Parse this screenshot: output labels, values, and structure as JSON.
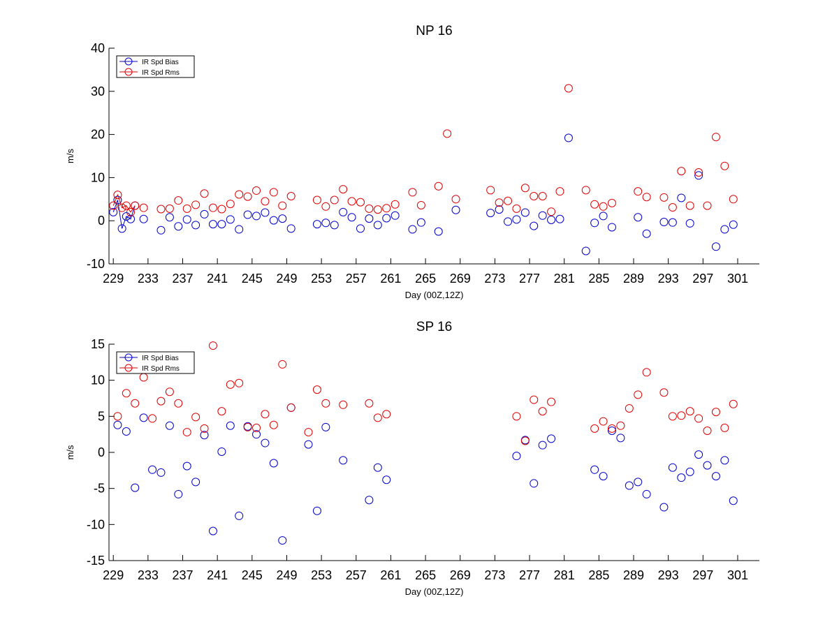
{
  "colors": {
    "bias": "#0000cc",
    "rms": "#e00000",
    "axis": "#000000",
    "background": "#ffffff"
  },
  "chart_data": [
    {
      "type": "scatter",
      "title": "NP 16",
      "xlabel": "Day (00Z,12Z)",
      "ylabel": "m/s",
      "xlim": [
        228.5,
        303.5
      ],
      "ylim": [
        -10,
        40
      ],
      "xticks": [
        229,
        233,
        237,
        241,
        245,
        249,
        253,
        257,
        261,
        265,
        269,
        273,
        277,
        281,
        285,
        289,
        293,
        297,
        301
      ],
      "yticks": [
        -10,
        0,
        10,
        20,
        30,
        40
      ],
      "grid": false,
      "legend_position": "top-left",
      "series": [
        {
          "name": "IR Spd Bias",
          "color_key": "bias",
          "marker": "circle",
          "connected_range": [
            229,
            231.5
          ],
          "x": [
            229,
            229.5,
            230,
            230.5,
            231,
            231.5,
            232.5,
            234.5,
            235.5,
            236.5,
            237.5,
            238.5,
            239.5,
            240.5,
            241.5,
            242.5,
            243.5,
            244.5,
            245.5,
            246.5,
            247.5,
            248.5,
            249.5,
            252.5,
            253.5,
            254.5,
            255.5,
            256.5,
            257.5,
            258.5,
            259.5,
            260.5,
            261.5,
            263.5,
            264.5,
            266.5,
            268.5,
            272.5,
            273.5,
            274.5,
            275.5,
            276.5,
            277.5,
            278.5,
            279.5,
            280.5,
            281.5,
            283.5,
            284.5,
            285.5,
            286.5,
            289.5,
            290.5,
            292.5,
            293.5,
            294.5,
            295.5,
            296.5,
            298.5,
            299.5,
            300.5
          ],
          "y": [
            2.0,
            4.8,
            -1.8,
            1.0,
            0.4,
            3.5,
            0.4,
            -2.2,
            0.8,
            -1.3,
            0.3,
            -1.0,
            1.5,
            -0.8,
            -0.8,
            0.3,
            -2.0,
            1.4,
            1.1,
            1.9,
            0.1,
            0.5,
            -1.8,
            -0.8,
            -0.5,
            -1.0,
            2.0,
            0.8,
            -1.8,
            0.5,
            -1.0,
            0.6,
            1.2,
            -2.0,
            -0.4,
            -2.5,
            2.5,
            1.8,
            2.6,
            -0.2,
            0.3,
            1.9,
            -1.2,
            1.2,
            0.2,
            0.4,
            19.2,
            -7.0,
            -0.5,
            1.1,
            -1.5,
            0.8,
            -3.0,
            -0.3,
            -0.4,
            5.3,
            -0.6,
            10.5,
            -6.0,
            -2.0,
            -0.9
          ]
        },
        {
          "name": "IR Spd Rms",
          "color_key": "rms",
          "marker": "circle",
          "connected_range": [
            229,
            231.5
          ],
          "x": [
            229,
            229.5,
            230,
            230.5,
            231,
            231.5,
            232.5,
            234.5,
            235.5,
            236.5,
            237.5,
            238.5,
            239.5,
            240.5,
            241.5,
            242.5,
            243.5,
            244.5,
            245.5,
            246.5,
            247.5,
            248.5,
            249.5,
            252.5,
            253.5,
            254.5,
            255.5,
            256.5,
            257.5,
            258.5,
            259.5,
            260.5,
            261.5,
            263.5,
            264.5,
            266.5,
            267.5,
            268.5,
            272.5,
            273.5,
            274.5,
            275.5,
            276.5,
            277.5,
            278.5,
            279.5,
            280.5,
            281.5,
            283.5,
            284.5,
            285.5,
            286.5,
            289.5,
            290.5,
            292.5,
            293.5,
            294.5,
            295.5,
            296.5,
            297.5,
            298.5,
            299.5,
            300.5
          ],
          "y": [
            3.5,
            6.0,
            3.0,
            3.5,
            2.0,
            3.5,
            3.0,
            2.7,
            2.8,
            4.7,
            2.8,
            3.7,
            6.3,
            3.0,
            2.7,
            3.9,
            6.1,
            5.6,
            7.0,
            4.5,
            6.6,
            3.5,
            5.7,
            4.8,
            3.3,
            4.8,
            7.3,
            4.5,
            4.3,
            2.8,
            2.6,
            2.9,
            3.8,
            6.6,
            3.6,
            8.0,
            20.2,
            5.0,
            7.1,
            4.2,
            4.6,
            2.8,
            7.6,
            5.7,
            5.7,
            2.1,
            6.8,
            30.7,
            7.1,
            3.8,
            3.3,
            4.1,
            6.8,
            5.5,
            5.4,
            3.1,
            11.5,
            3.5,
            11.2,
            3.5,
            19.4,
            12.7,
            5.0
          ]
        }
      ]
    },
    {
      "type": "scatter",
      "title": "SP 16",
      "xlabel": "Day (00Z,12Z)",
      "ylabel": "m/s",
      "xlim": [
        228.5,
        303.5
      ],
      "ylim": [
        -15,
        15
      ],
      "xticks": [
        229,
        233,
        237,
        241,
        245,
        249,
        253,
        257,
        261,
        265,
        269,
        273,
        277,
        281,
        285,
        289,
        293,
        297,
        301
      ],
      "yticks": [
        -15,
        -10,
        -5,
        0,
        5,
        10,
        15
      ],
      "grid": false,
      "legend_position": "top-left",
      "series": [
        {
          "name": "IR Spd Bias",
          "color_key": "bias",
          "marker": "circle",
          "x": [
            229.5,
            230.5,
            231.5,
            232.5,
            233.5,
            234.5,
            235.5,
            236.5,
            237.5,
            238.5,
            239.5,
            240.5,
            241.5,
            242.5,
            243.5,
            244.5,
            245.5,
            246.5,
            247.5,
            248.5,
            249.5,
            251.5,
            252.5,
            253.5,
            255.5,
            258.5,
            259.5,
            260.5,
            275.5,
            276.5,
            277.5,
            278.5,
            279.5,
            284.5,
            285.5,
            286.5,
            287.5,
            288.5,
            289.5,
            290.5,
            292.5,
            293.5,
            294.5,
            295.5,
            296.5,
            297.5,
            298.5,
            299.5,
            300.5
          ],
          "y": [
            3.8,
            2.9,
            -4.9,
            4.8,
            -2.4,
            -2.8,
            3.7,
            -5.8,
            -1.9,
            -4.1,
            2.4,
            -10.9,
            0.1,
            3.7,
            -8.8,
            3.6,
            2.5,
            1.3,
            -1.5,
            -12.2,
            6.2,
            1.1,
            -8.1,
            3.5,
            -1.1,
            -6.6,
            -2.1,
            -3.8,
            -0.5,
            1.7,
            -4.3,
            1.0,
            1.9,
            -2.4,
            -3.3,
            3.0,
            2.0,
            -4.6,
            -4.1,
            -5.8,
            -7.6,
            -2.1,
            -3.5,
            -2.7,
            -0.3,
            -1.8,
            -3.3,
            -1.1,
            -6.7
          ]
        },
        {
          "name": "IR Spd Rms",
          "color_key": "rms",
          "marker": "circle",
          "x": [
            229.5,
            230.5,
            231.5,
            232.5,
            233.5,
            234.5,
            235.5,
            236.5,
            237.5,
            238.5,
            239.5,
            240.5,
            241.5,
            242.5,
            243.5,
            244.5,
            245.5,
            246.5,
            247.5,
            248.5,
            249.5,
            251.5,
            252.5,
            253.5,
            255.5,
            258.5,
            259.5,
            260.5,
            275.5,
            276.5,
            277.5,
            278.5,
            279.5,
            284.5,
            285.5,
            286.5,
            287.5,
            288.5,
            289.5,
            290.5,
            292.5,
            293.5,
            294.5,
            295.5,
            296.5,
            297.5,
            298.5,
            299.5,
            300.5
          ],
          "y": [
            5.0,
            8.2,
            6.8,
            10.4,
            4.7,
            7.1,
            8.4,
            6.8,
            2.8,
            4.9,
            3.3,
            14.8,
            5.7,
            9.4,
            9.6,
            3.5,
            3.4,
            5.3,
            3.8,
            12.2,
            6.2,
            2.8,
            8.7,
            6.8,
            6.6,
            6.8,
            4.8,
            5.3,
            5.0,
            1.6,
            7.3,
            5.7,
            7.0,
            3.3,
            4.3,
            3.3,
            3.7,
            6.1,
            8.0,
            11.1,
            8.3,
            5.0,
            5.1,
            5.7,
            4.7,
            3.0,
            5.6,
            3.4,
            6.7
          ]
        }
      ]
    }
  ]
}
